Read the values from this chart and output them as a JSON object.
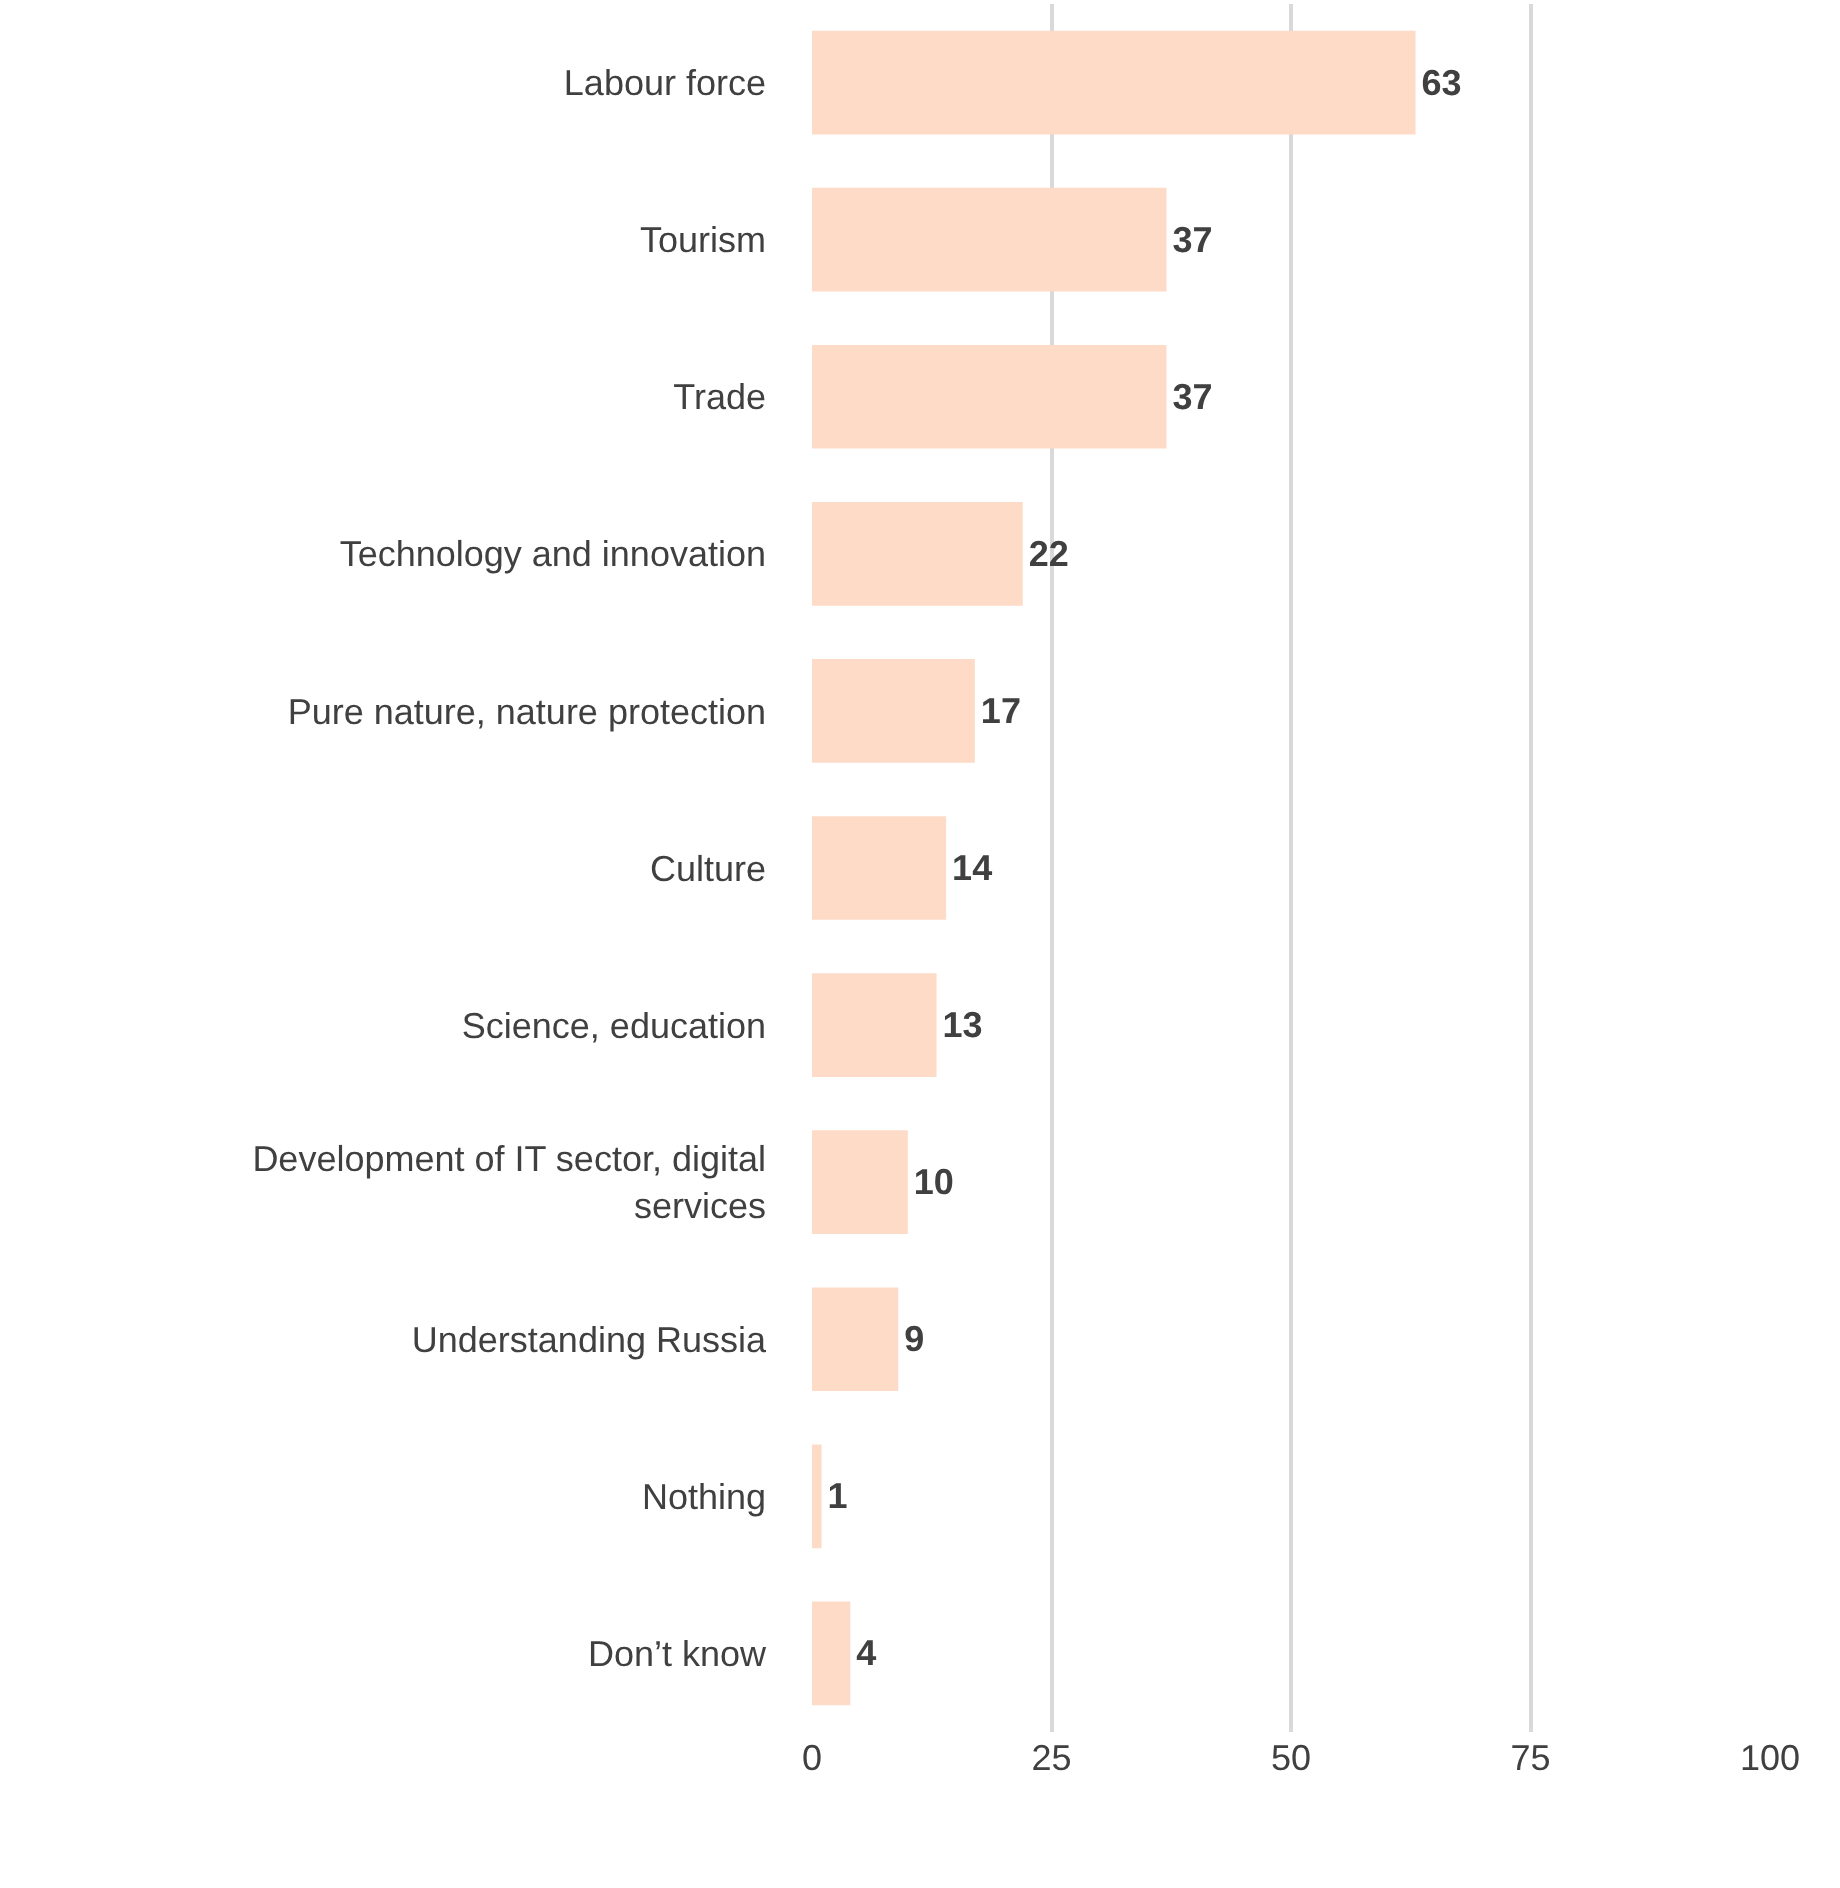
{
  "chart_data": {
    "type": "bar",
    "orientation": "horizontal",
    "categories": [
      "Labour force",
      "Tourism",
      "Trade",
      "Technology and innovation",
      "Pure nature, nature protection",
      "Culture",
      "Science, education",
      "Development of IT sector, digital services",
      "Understanding Russia",
      "Nothing",
      "Don’t know"
    ],
    "values": [
      63,
      37,
      37,
      22,
      17,
      14,
      13,
      10,
      9,
      1,
      4
    ],
    "color": "#fddbc7",
    "xlim": [
      0,
      100
    ],
    "xticks": [
      0,
      25,
      50,
      75,
      100
    ],
    "grid": "x",
    "data_labels": true,
    "legend": false
  }
}
